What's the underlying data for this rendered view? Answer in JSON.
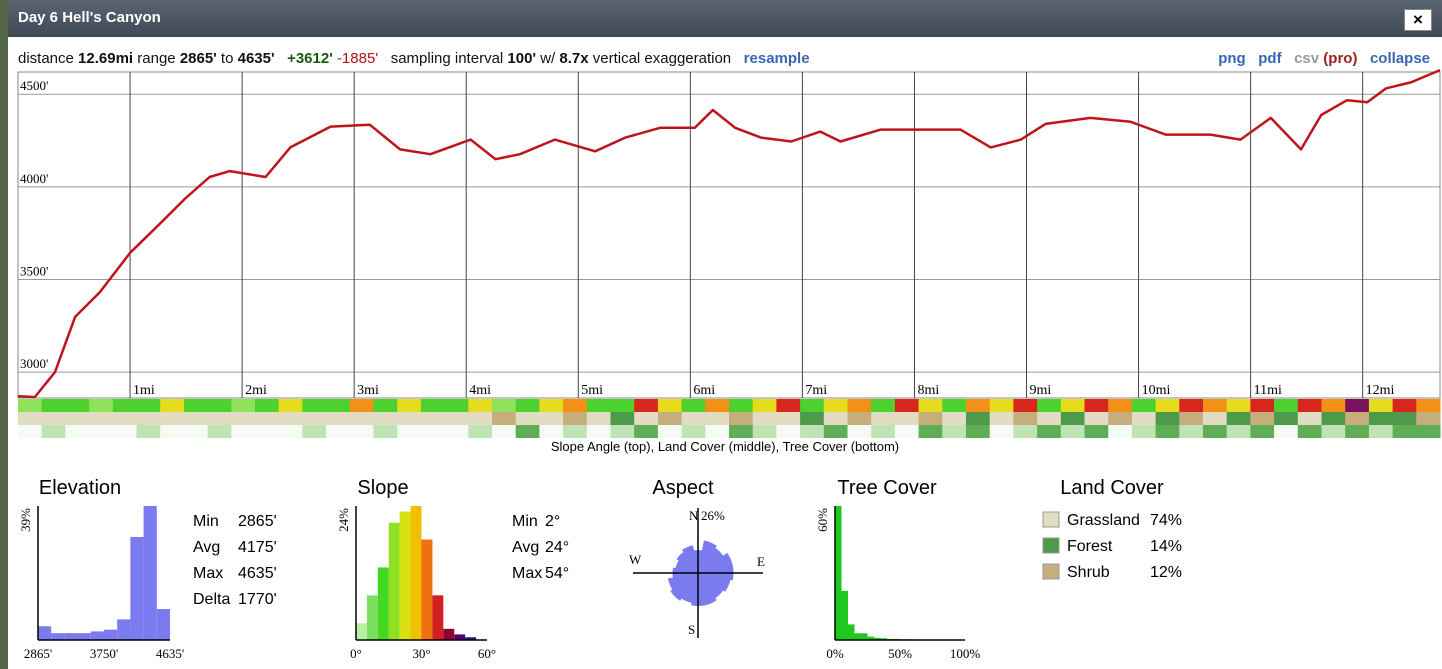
{
  "window": {
    "title": "Day 6 Hell's Canyon",
    "close": "×"
  },
  "toolbar": {
    "distance_label": "distance",
    "distance": "12.69mi",
    "range_label": "range",
    "range_min": "2865'",
    "range_to": "to",
    "range_max": "4635'",
    "gain": "+3612'",
    "loss": "-1885'",
    "interval_label": "sampling interval",
    "interval": "100'",
    "with": "w/",
    "exaggeration": "8.7x",
    "exaggeration_label": "vertical exaggeration",
    "resample": "resample",
    "png": "png",
    "pdf": "pdf",
    "csv": "csv",
    "pro": "(pro)",
    "collapse": "collapse"
  },
  "chart_data": [
    {
      "type": "line",
      "color": "#c0141c",
      "grid": true,
      "x": [
        0,
        0.15,
        0.33,
        0.51,
        0.73,
        1.0,
        1.27,
        1.49,
        1.71,
        1.89,
        2.21,
        2.43,
        2.79,
        3.14,
        3.41,
        3.68,
        4.04,
        4.26,
        4.48,
        4.79,
        5.15,
        5.42,
        5.73,
        6.04,
        6.2,
        6.4,
        6.63,
        6.9,
        7.16,
        7.34,
        7.7,
        8.05,
        8.41,
        8.68,
        8.95,
        9.17,
        9.57,
        9.93,
        10.24,
        10.64,
        10.91,
        11.18,
        11.45,
        11.63,
        11.86,
        12.04,
        12.21,
        12.43,
        12.69
      ],
      "values": [
        2870,
        2865,
        3000,
        3298,
        3431,
        3644,
        3803,
        3936,
        4053,
        4085,
        4053,
        4213,
        4325,
        4335,
        4202,
        4176,
        4255,
        4149,
        4176,
        4255,
        4192,
        4266,
        4319,
        4319,
        4415,
        4319,
        4266,
        4245,
        4298,
        4245,
        4309,
        4309,
        4309,
        4213,
        4255,
        4340,
        4372,
        4351,
        4282,
        4282,
        4255,
        4372,
        4202,
        4388,
        4468,
        4457,
        4532,
        4564,
        4630
      ],
      "xlim": [
        0,
        12.69
      ],
      "xticks": [
        {
          "value": 1,
          "label": "1mi"
        },
        {
          "value": 2,
          "label": "2mi"
        },
        {
          "value": 3,
          "label": "3mi"
        },
        {
          "value": 4,
          "label": "4mi"
        },
        {
          "value": 5,
          "label": "5mi"
        },
        {
          "value": 6,
          "label": "6mi"
        },
        {
          "value": 7,
          "label": "7mi"
        },
        {
          "value": 8,
          "label": "8mi"
        },
        {
          "value": 9,
          "label": "9mi"
        },
        {
          "value": 10,
          "label": "10mi"
        },
        {
          "value": 11,
          "label": "11mi"
        },
        {
          "value": 12,
          "label": "12mi"
        }
      ],
      "ylim": [
        2860,
        4620
      ],
      "yticks": [
        {
          "value": 3000,
          "label": "3000'"
        },
        {
          "value": 3500,
          "label": "3500'"
        },
        {
          "value": 4000,
          "label": "4000'"
        },
        {
          "value": 4500,
          "label": "4500'"
        }
      ],
      "strips": {
        "caption": "Slope Angle (top), Land Cover (middle), Tree Cover (bottom)",
        "slope_colors": [
          "#8fe35a",
          "#4cd12e",
          "#4cd12e",
          "#8fe35a",
          "#4cd12e",
          "#4cd12e",
          "#e6dc1e",
          "#4cd12e",
          "#4cd12e",
          "#8fe35a",
          "#4cd12e",
          "#e6dc1e",
          "#4cd12e",
          "#4cd12e",
          "#f29018",
          "#4cd12e",
          "#e6dc1e",
          "#4cd12e",
          "#4cd12e",
          "#e6dc1e",
          "#8fe35a",
          "#4cd12e",
          "#e6dc1e",
          "#f29018",
          "#4cd12e",
          "#4cd12e",
          "#d8261c",
          "#e6dc1e",
          "#4cd12e",
          "#f29018",
          "#4cd12e",
          "#e6dc1e",
          "#d8261c",
          "#4cd12e",
          "#e6dc1e",
          "#f29018",
          "#4cd12e",
          "#d8261c",
          "#e6dc1e",
          "#4cd12e",
          "#f29018",
          "#e6dc1e",
          "#d8261c",
          "#4cd12e",
          "#e6dc1e",
          "#d8261c",
          "#f29018",
          "#4cd12e",
          "#e6dc1e",
          "#d8261c",
          "#f29018",
          "#e6dc1e",
          "#d8261c",
          "#4cd12e",
          "#d8261c",
          "#f29018",
          "#7a1060",
          "#e6dc1e",
          "#d8261c",
          "#f29018"
        ],
        "land_colors": [
          "#e2dcc2",
          "#e2dcc2",
          "#e2dcc2",
          "#e2dcc2",
          "#e2dcc2",
          "#e2dcc2",
          "#e2dcc2",
          "#e2dcc2",
          "#e2dcc2",
          "#e2dcc2",
          "#e2dcc2",
          "#e2dcc2",
          "#e2dcc2",
          "#e2dcc2",
          "#e2dcc2",
          "#e2dcc2",
          "#e2dcc2",
          "#e2dcc2",
          "#e2dcc2",
          "#e2dcc2",
          "#c6ae7c",
          "#e2dcc2",
          "#e2dcc2",
          "#c6ae7c",
          "#e2dcc2",
          "#4e9a4a",
          "#e2dcc2",
          "#c6ae7c",
          "#e2dcc2",
          "#e2dcc2",
          "#c6ae7c",
          "#e2dcc2",
          "#e2dcc2",
          "#4e9a4a",
          "#e2dcc2",
          "#c6ae7c",
          "#e2dcc2",
          "#e2dcc2",
          "#c6ae7c",
          "#e2dcc2",
          "#4e9a4a",
          "#e2dcc2",
          "#c6ae7c",
          "#e2dcc2",
          "#4e9a4a",
          "#e2dcc2",
          "#c6ae7c",
          "#e2dcc2",
          "#4e9a4a",
          "#c6ae7c",
          "#e2dcc2",
          "#4e9a4a",
          "#c6ae7c",
          "#4e9a4a",
          "#e2dcc2",
          "#4e9a4a",
          "#c6ae7c",
          "#4e9a4a",
          "#4e9a4a",
          "#c6ae7c"
        ],
        "tree_colors": [
          "#f4fbf2",
          "#bfe3b5",
          "#f4fbf2",
          "#f4fbf2",
          "#f4fbf2",
          "#bfe3b5",
          "#f4fbf2",
          "#f4fbf2",
          "#bfe3b5",
          "#f4fbf2",
          "#f4fbf2",
          "#f4fbf2",
          "#bfe3b5",
          "#f4fbf2",
          "#f4fbf2",
          "#bfe3b5",
          "#f4fbf2",
          "#f4fbf2",
          "#f4fbf2",
          "#bfe3b5",
          "#f4fbf2",
          "#5fae55",
          "#f4fbf2",
          "#bfe3b5",
          "#f4fbf2",
          "#bfe3b5",
          "#5fae55",
          "#f4fbf2",
          "#bfe3b5",
          "#f4fbf2",
          "#5fae55",
          "#bfe3b5",
          "#f4fbf2",
          "#bfe3b5",
          "#5fae55",
          "#f4fbf2",
          "#bfe3b5",
          "#f4fbf2",
          "#5fae55",
          "#bfe3b5",
          "#5fae55",
          "#f4fbf2",
          "#bfe3b5",
          "#5fae55",
          "#bfe3b5",
          "#5fae55",
          "#f4fbf2",
          "#bfe3b5",
          "#5fae55",
          "#bfe3b5",
          "#5fae55",
          "#bfe3b5",
          "#5fae55",
          "#f4fbf2",
          "#5fae55",
          "#bfe3b5",
          "#5fae55",
          "#bfe3b5",
          "#5fae55",
          "#5fae55"
        ]
      }
    },
    {
      "type": "histogram",
      "title": "Elevation",
      "color": "#7b7bf0",
      "bins": [
        2865,
        3042,
        3219,
        3396,
        3573,
        3750,
        3927,
        4104,
        4281,
        4458,
        4635
      ],
      "values": [
        4,
        2,
        2,
        2,
        2.5,
        3,
        6,
        30,
        39,
        9
      ],
      "xlim": [
        2865,
        4635
      ],
      "xticks": [
        {
          "value": 2865,
          "label": "2865'"
        },
        {
          "value": 3750,
          "label": "3750'"
        },
        {
          "value": 4635,
          "label": "4635'"
        }
      ],
      "ylim": [
        0,
        39
      ],
      "yticks": [
        {
          "value": 39,
          "label": "39%"
        }
      ],
      "stats": [
        {
          "label": "Min",
          "value": "2865'"
        },
        {
          "label": "Avg",
          "value": "4175'"
        },
        {
          "label": "Max",
          "value": "4635'"
        },
        {
          "label": "Delta",
          "value": "1770'"
        }
      ]
    },
    {
      "type": "histogram",
      "title": "Slope",
      "colors": [
        "#b8f0a0",
        "#78e060",
        "#44d820",
        "#8ee020",
        "#d8e010",
        "#f0c000",
        "#f07010",
        "#d02020",
        "#900030",
        "#500070",
        "#202080"
      ],
      "bins": [
        0,
        5,
        10,
        15,
        20,
        25,
        30,
        35,
        40,
        45,
        50,
        55
      ],
      "values": [
        3,
        8,
        13,
        21,
        23,
        24,
        18,
        8,
        2,
        1,
        0.5
      ],
      "xlim": [
        0,
        60
      ],
      "xticks": [
        {
          "value": 0,
          "label": "0°"
        },
        {
          "value": 30,
          "label": "30°"
        },
        {
          "value": 60,
          "label": "60°"
        }
      ],
      "ylim": [
        0,
        24
      ],
      "yticks": [
        {
          "value": 24,
          "label": "24%"
        }
      ],
      "stats": [
        {
          "label": "Min",
          "value": "2°"
        },
        {
          "label": "Avg",
          "value": "24°"
        },
        {
          "label": "Max",
          "value": "54°"
        }
      ]
    },
    {
      "type": "rose",
      "title": "Aspect",
      "color": "#7b7bf0",
      "values": [
        9,
        13,
        12,
        14,
        14,
        13,
        12,
        13,
        13,
        12,
        13,
        12,
        10,
        9,
        10,
        11
      ],
      "axis_labels": [
        "N",
        "E",
        "S",
        "W"
      ],
      "rlim": [
        0,
        26
      ],
      "rticks": [
        {
          "value": 26,
          "label": "26%"
        }
      ]
    },
    {
      "type": "histogram",
      "title": "Tree Cover",
      "color": "#1ec81e",
      "bins": [
        0,
        5,
        10,
        15,
        20,
        25,
        30,
        35,
        40,
        45,
        50,
        55,
        60,
        65,
        70,
        75,
        80,
        85,
        90,
        95,
        100
      ],
      "values": [
        60,
        22,
        7,
        3,
        3,
        1.5,
        1,
        0.8,
        0.5,
        0.5,
        0.3,
        0.3,
        0.2,
        0.1,
        0.1,
        0.1,
        0,
        0,
        0,
        0
      ],
      "xlim": [
        0,
        100
      ],
      "xticks": [
        {
          "value": 0,
          "label": "0%"
        },
        {
          "value": 50,
          "label": "50%"
        },
        {
          "value": 100,
          "label": "100%"
        }
      ],
      "ylim": [
        0,
        60
      ],
      "yticks": [
        {
          "value": 60,
          "label": "60%"
        }
      ]
    },
    {
      "type": "legend",
      "title": "Land Cover",
      "categories": [
        "Grassland",
        "Forest",
        "Shrub"
      ],
      "values": [
        74,
        14,
        12
      ],
      "value_labels": [
        "74%",
        "14%",
        "12%"
      ],
      "colors": [
        "#e2dcc2",
        "#4e9a4a",
        "#c6ae7c"
      ]
    }
  ]
}
